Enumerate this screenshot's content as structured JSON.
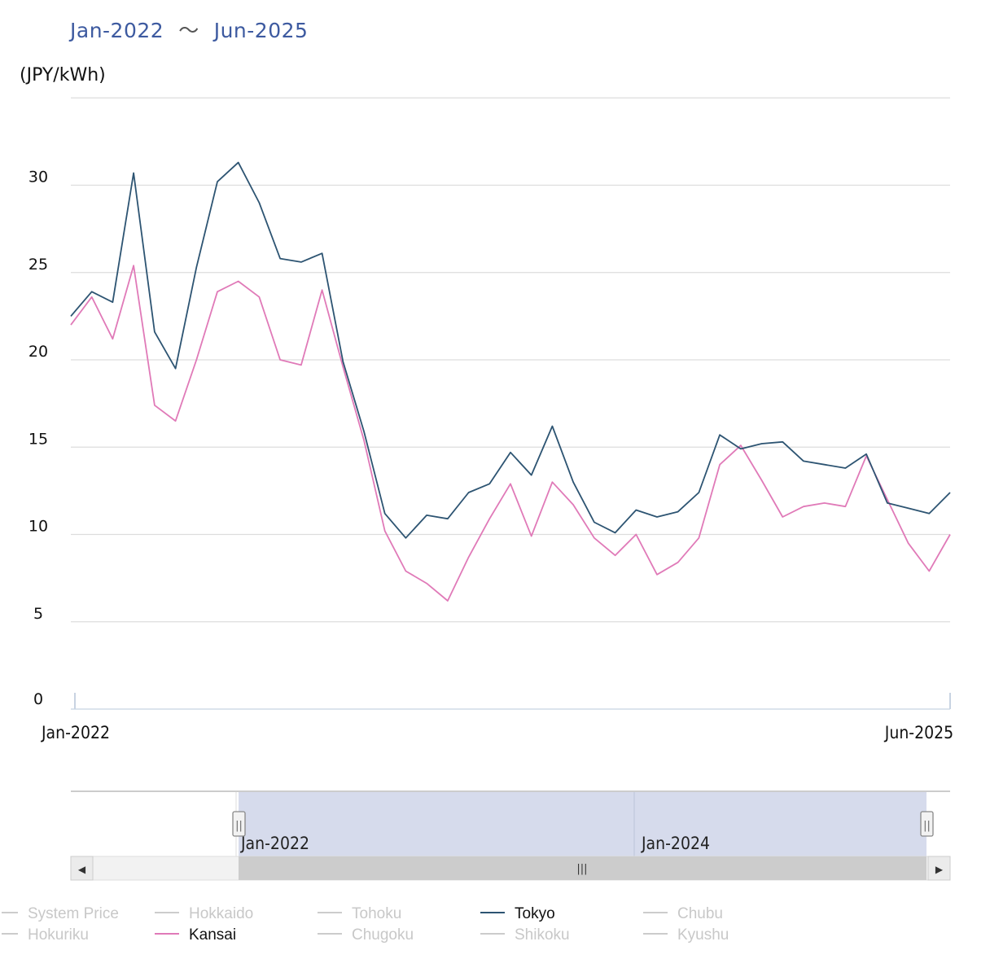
{
  "range_selector": {
    "from": "Jan-2022",
    "separator": "〜",
    "to": "Jun-2025"
  },
  "chart_data": {
    "type": "line",
    "ylabel": "(JPY/kWh)",
    "ylim": [
      0,
      35
    ],
    "yticks": [
      0,
      5,
      10,
      15,
      20,
      25,
      30
    ],
    "x_start": "Jan-2022",
    "x_end": "Jun-2025",
    "x_tick_labels": [
      "Jan-2022",
      "Jun-2025"
    ],
    "grid": true,
    "legend_position": "bottom",
    "series": [
      {
        "name": "Tokyo",
        "color": "#2d5472",
        "values": [
          22.5,
          23.9,
          23.3,
          30.7,
          21.6,
          19.5,
          25.3,
          30.2,
          31.3,
          29.0,
          25.8,
          25.6,
          26.1,
          19.9,
          15.9,
          11.2,
          9.8,
          11.1,
          10.9,
          12.4,
          12.9,
          14.7,
          13.4,
          16.2,
          13.0,
          10.7,
          10.1,
          11.4,
          11.0,
          11.3,
          12.4,
          15.7,
          14.9,
          15.2,
          15.3,
          14.2,
          14.0,
          13.8,
          14.6,
          11.8,
          11.5,
          11.2,
          12.4
        ]
      },
      {
        "name": "Kansai",
        "color": "#e07ab8",
        "values": [
          22.0,
          23.6,
          21.2,
          25.4,
          17.4,
          16.5,
          20.0,
          23.9,
          24.5,
          23.6,
          20.0,
          19.7,
          24.0,
          19.6,
          15.4,
          10.2,
          7.9,
          7.2,
          6.2,
          8.7,
          10.9,
          12.9,
          9.9,
          13.0,
          11.7,
          9.8,
          8.8,
          10.0,
          7.7,
          8.4,
          9.8,
          14.0,
          15.1,
          13.1,
          11.0,
          11.6,
          11.8,
          11.6,
          14.5,
          12.0,
          9.5,
          7.9,
          10.0
        ]
      }
    ]
  },
  "navigator": {
    "labels": [
      "Jan-2022",
      "Jan-2024"
    ],
    "handle_glyph": "||",
    "scroll_grip_glyph": "|||",
    "left_arrow": "◀",
    "right_arrow": "▶"
  },
  "legend": [
    {
      "name": "System Price",
      "active": false,
      "color": "#cccccc"
    },
    {
      "name": "Hokkaido",
      "active": false,
      "color": "#cccccc"
    },
    {
      "name": "Tohoku",
      "active": false,
      "color": "#cccccc"
    },
    {
      "name": "Tokyo",
      "active": true,
      "color": "#2d5472"
    },
    {
      "name": "Chubu",
      "active": false,
      "color": "#cccccc"
    },
    {
      "name": "Hokuriku",
      "active": false,
      "color": "#cccccc"
    },
    {
      "name": "Kansai",
      "active": true,
      "color": "#e07ab8"
    },
    {
      "name": "Chugoku",
      "active": false,
      "color": "#cccccc"
    },
    {
      "name": "Shikoku",
      "active": false,
      "color": "#cccccc"
    },
    {
      "name": "Kyushu",
      "active": false,
      "color": "#cccccc"
    }
  ]
}
